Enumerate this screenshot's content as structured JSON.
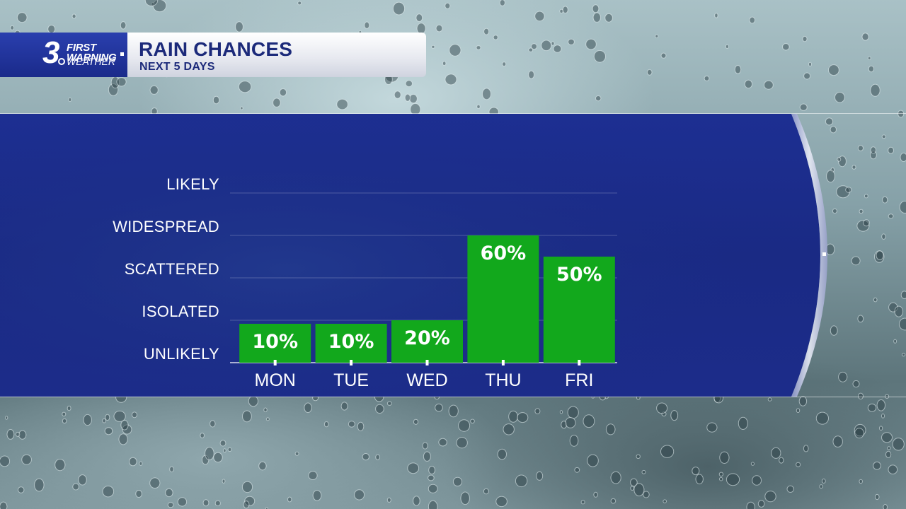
{
  "logo": {
    "number": "3",
    "line1": "FIRST",
    "line2": "WARNING",
    "line3": "WEATHER"
  },
  "header": {
    "title": "RAIN CHANCES",
    "subtitle": "NEXT 5 DAYS"
  },
  "colors": {
    "bar": "#12a81c",
    "panel": "#1b2a86",
    "title": "#1c2a7a"
  },
  "chart_data": {
    "type": "bar",
    "categories": [
      "MON",
      "TUE",
      "WED",
      "THU",
      "FRI"
    ],
    "values": [
      10,
      10,
      20,
      60,
      50
    ],
    "value_labels": [
      "10%",
      "10%",
      "20%",
      "60%",
      "50%"
    ],
    "ylim": [
      0,
      100
    ],
    "y_levels": [
      {
        "label": "UNLIKELY",
        "value": 0
      },
      {
        "label": "ISOLATED",
        "value": 20
      },
      {
        "label": "SCATTERED",
        "value": 40
      },
      {
        "label": "WIDESPREAD",
        "value": 60
      },
      {
        "label": "LIKELY",
        "value": 80
      }
    ],
    "grid": true
  }
}
